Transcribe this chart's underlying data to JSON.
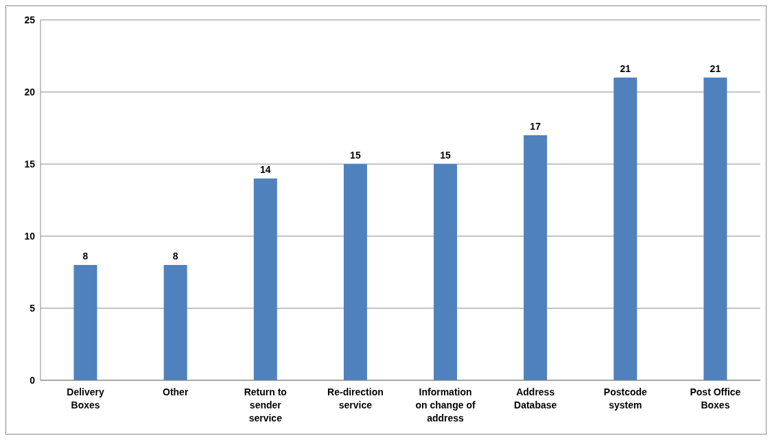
{
  "chart_data": {
    "type": "bar",
    "categories": [
      "Delivery Boxes",
      "Other",
      "Return to sender service",
      "Re-direction service",
      "Information on change of address",
      "Address Database",
      "Postcode system",
      "Post Office Boxes"
    ],
    "values": [
      8,
      8,
      14,
      15,
      15,
      17,
      21,
      21
    ],
    "color": "#4f81bd",
    "ylim": [
      0,
      25
    ],
    "yticks": [
      0,
      5,
      10,
      15,
      20,
      25
    ],
    "grid": "y",
    "data_labels": true
  }
}
